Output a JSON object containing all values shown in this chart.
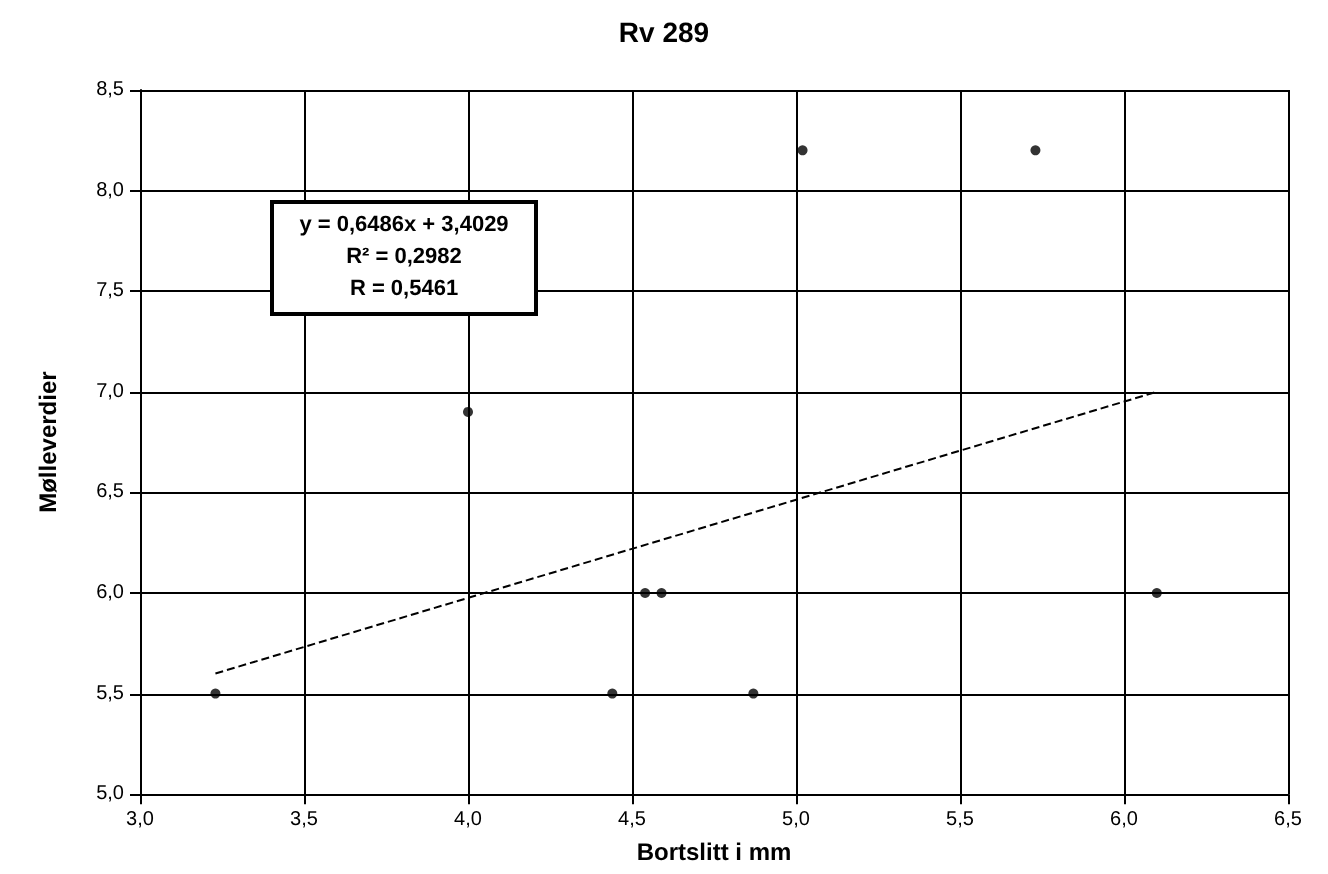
{
  "chart_data": {
    "type": "scatter",
    "title": "Rv 289",
    "xlabel": "Bortslitt i mm",
    "ylabel": "Mølleverdier",
    "xlim": [
      3.0,
      6.5
    ],
    "ylim": [
      5.0,
      8.5
    ],
    "xticks": [
      {
        "value": 3.0,
        "label": "3,0"
      },
      {
        "value": 3.5,
        "label": "3,5"
      },
      {
        "value": 4.0,
        "label": "4,0"
      },
      {
        "value": 4.5,
        "label": "4,5"
      },
      {
        "value": 5.0,
        "label": "5,0"
      },
      {
        "value": 5.5,
        "label": "5,5"
      },
      {
        "value": 6.0,
        "label": "6,0"
      },
      {
        "value": 6.5,
        "label": "6,5"
      }
    ],
    "yticks": [
      {
        "value": 5.0,
        "label": "5,0"
      },
      {
        "value": 5.5,
        "label": "5,5"
      },
      {
        "value": 6.0,
        "label": "6,0"
      },
      {
        "value": 6.5,
        "label": "6,5"
      },
      {
        "value": 7.0,
        "label": "7,0"
      },
      {
        "value": 7.5,
        "label": "7,5"
      },
      {
        "value": 8.0,
        "label": "8,0"
      },
      {
        "value": 8.5,
        "label": "8,5"
      }
    ],
    "grid": true,
    "marker": "circle",
    "series": [
      {
        "color": "#000000",
        "x": [
          3.23,
          4.0,
          4.44,
          4.54,
          4.59,
          4.87,
          5.02,
          5.73,
          6.1
        ],
        "values": [
          5.5,
          6.9,
          5.5,
          6.0,
          6.0,
          5.5,
          8.2,
          8.2,
          6.0
        ]
      },
      {
        "type": "line",
        "color": "#000000",
        "marker": "none",
        "line_style": "dashed",
        "x": [
          3.23,
          6.1
        ],
        "values": [
          5.6,
          7.0
        ]
      }
    ],
    "annotations": [
      "y = 0,6486x + 3,4029",
      "R² = 0,2982",
      "R = 0,5461"
    ]
  }
}
